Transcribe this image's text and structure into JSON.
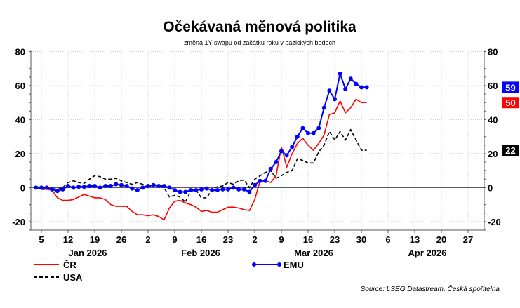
{
  "chart_data": {
    "type": "line",
    "title": "Očekávaná měnová politika",
    "subtitle": "změna 1Y swapu od začátku roku v bazických bodech",
    "source": "Source: LSEG Datastream, Česká spořitelna",
    "ylim": [
      -25,
      80
    ],
    "yticks": [
      "80",
      "60",
      "40",
      "20",
      "0",
      "-20"
    ],
    "ytick_values": [
      80,
      60,
      40,
      20,
      0,
      -20
    ],
    "grid": true,
    "x_axis_note": "business days, first point 2 Jan 2026",
    "xticks": [
      "5",
      "12",
      "19",
      "26",
      "2",
      "9",
      "16",
      "23",
      "2",
      "9",
      "16",
      "23",
      "30",
      "6",
      "13",
      "20",
      "27"
    ],
    "months": [
      "Jan 2026",
      "Feb 2026",
      "Mar 2026",
      "Apr 2026"
    ],
    "legend": {
      "placement": "bottom-left"
    },
    "series": [
      {
        "name": "ČR",
        "color": "#ff0000",
        "style": "solid",
        "end_label": "50",
        "values": [
          0,
          -0.5,
          -1,
          -1.5,
          -6,
          -7.5,
          -7.5,
          -7,
          -5.5,
          -4,
          -5,
          -6,
          -6,
          -7,
          -10,
          -11,
          -11,
          -11,
          -14,
          -16,
          -16,
          -16.5,
          -16,
          -17,
          -19,
          -12,
          -8,
          -7.5,
          -9,
          -10,
          -11.5,
          -14,
          -13.5,
          -14.5,
          -14.5,
          -13,
          -11.5,
          -11.5,
          -12,
          -13,
          -13.5,
          -7,
          4,
          4,
          3,
          7,
          24,
          12,
          20,
          26,
          29,
          25,
          22,
          26,
          31,
          43,
          44,
          51,
          44,
          47,
          52,
          50,
          50
        ]
      },
      {
        "name": "EMU",
        "color": "#0000ff",
        "style": "markers",
        "end_label": "59",
        "values": [
          0,
          0,
          0,
          -1,
          -2,
          -1,
          1,
          0,
          0.5,
          0.5,
          1,
          1,
          0,
          1,
          1,
          2,
          1.5,
          1,
          -0.5,
          -1.5,
          0,
          1,
          1.5,
          1,
          1,
          0,
          -1.5,
          -2.5,
          -2.5,
          -1.5,
          -1.5,
          -1,
          -0.5,
          -1.5,
          -1.5,
          -1,
          -1,
          0,
          -1,
          -1,
          -2.5,
          1.5,
          4,
          4,
          11,
          15,
          21.5,
          19,
          24,
          30,
          35,
          32,
          32,
          35,
          47,
          57,
          52,
          67,
          58,
          64,
          61,
          59,
          59
        ]
      },
      {
        "name": "USA",
        "color": "#000000",
        "style": "dashed",
        "end_label": "22",
        "values": [
          0,
          -1,
          -1,
          -0.5,
          -1,
          0,
          3,
          4,
          3,
          2.5,
          5,
          7,
          6.5,
          5,
          5,
          5.5,
          4,
          3,
          2,
          3,
          2,
          0,
          2,
          1,
          0,
          -5.5,
          -4.5,
          -5.5,
          -8.5,
          -2,
          -1.5,
          -6,
          -6,
          -1,
          0.5,
          1,
          3,
          2,
          4,
          4.5,
          0,
          5,
          7,
          9,
          10,
          5.5,
          7,
          9,
          10,
          17,
          16,
          14.5,
          14.5,
          21,
          25,
          33,
          28,
          33,
          28,
          34,
          28,
          22,
          22
        ]
      }
    ]
  }
}
